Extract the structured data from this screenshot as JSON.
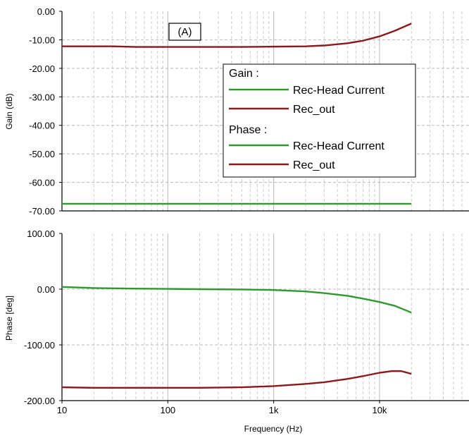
{
  "chart_data": [
    {
      "type": "line",
      "xscale": "log",
      "xlim": [
        10,
        70000
      ],
      "ylim": [
        -70,
        0
      ],
      "ylabel": "Gain (dB)",
      "xlabel": "",
      "y_ticks": [
        "0.00",
        "-10.00",
        "-20.00",
        "-30.00",
        "-40.00",
        "-50.00",
        "-60.00",
        "-70.00"
      ],
      "grid": true,
      "legend_location": "center-right",
      "legend_groups": [
        {
          "title": "Gain :",
          "entries": [
            "Rec-Head Current",
            "Rec_out"
          ]
        },
        {
          "title": "Phase :",
          "entries": [
            "Rec-Head Current",
            "Rec_out"
          ]
        }
      ],
      "annotations": [
        "(A)"
      ],
      "series": [
        {
          "name": "Rec-Head Current",
          "color": "#2e9a2e",
          "x": [
            10,
            100,
            1000,
            10000,
            20000
          ],
          "y": [
            -67.5,
            -67.5,
            -67.5,
            -67.5,
            -67.5
          ]
        },
        {
          "name": "Rec_out",
          "color": "#8b1a1a",
          "x": [
            10,
            30,
            50,
            100,
            200,
            500,
            1000,
            2000,
            3000,
            5000,
            7000,
            10000,
            14000,
            20000
          ],
          "y": [
            -12.3,
            -12.3,
            -12.5,
            -12.5,
            -12.5,
            -12.5,
            -12.4,
            -12.3,
            -12.0,
            -11.2,
            -10.3,
            -8.8,
            -6.8,
            -4.3
          ]
        }
      ]
    },
    {
      "type": "line",
      "xscale": "log",
      "xlim": [
        10,
        70000
      ],
      "ylim": [
        -200,
        100
      ],
      "ylabel": "Phase [deg]",
      "xlabel": "Frequency (Hz)",
      "y_ticks": [
        "100.00",
        "0.00",
        "-100.00",
        "-200.00"
      ],
      "x_ticks": [
        "10",
        "100",
        "1k",
        "10k"
      ],
      "grid": true,
      "series": [
        {
          "name": "Rec-Head Current",
          "color": "#2e9a2e",
          "x": [
            10,
            20,
            50,
            100,
            200,
            500,
            1000,
            2000,
            3000,
            5000,
            7000,
            10000,
            14000,
            20000
          ],
          "y": [
            4,
            2,
            1,
            0.5,
            0,
            -0.5,
            -1.5,
            -4,
            -7,
            -12,
            -17,
            -23,
            -30,
            -42
          ]
        },
        {
          "name": "Rec_out",
          "color": "#8b1a1a",
          "x": [
            10,
            20,
            50,
            100,
            200,
            500,
            1000,
            2000,
            3000,
            5000,
            7000,
            10000,
            13000,
            16000,
            20000
          ],
          "y": [
            -176,
            -177,
            -177,
            -177,
            -177,
            -176,
            -174,
            -170,
            -167,
            -161,
            -156,
            -150,
            -147,
            -147,
            -152
          ]
        }
      ]
    }
  ]
}
